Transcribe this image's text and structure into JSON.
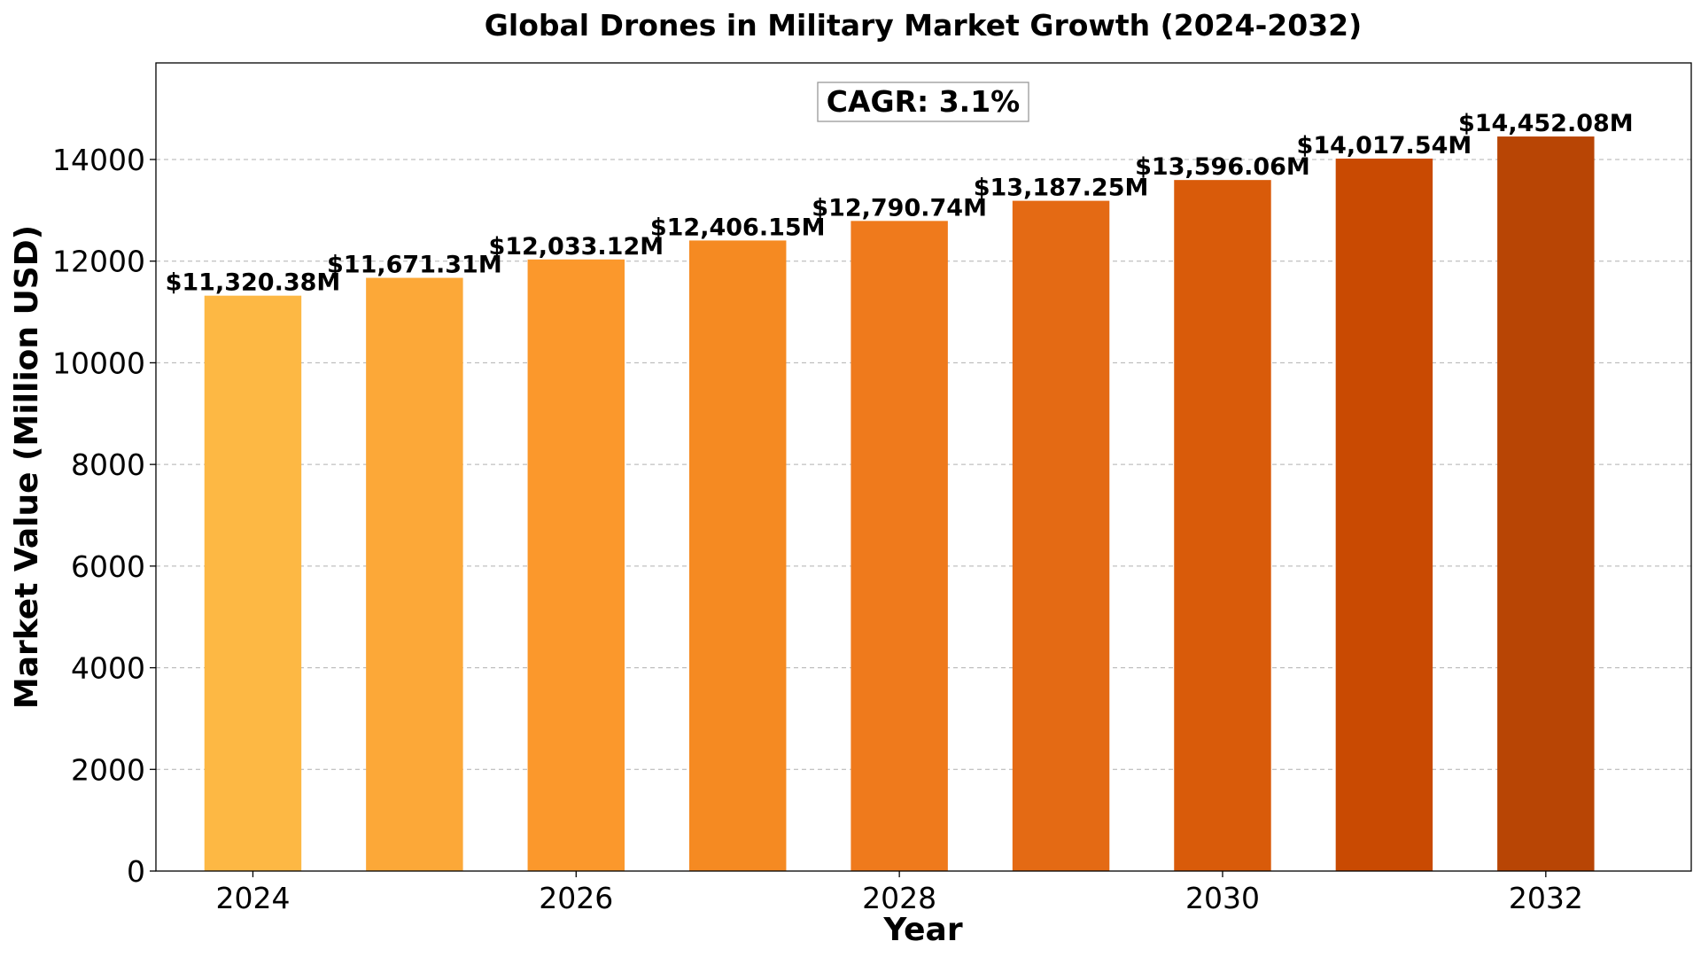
{
  "chart_data": {
    "type": "bar",
    "title": "Global Drones in Military Market Growth (2024-2032)",
    "xlabel": "Year",
    "ylabel": "Market Value (Million USD)",
    "categories": [
      2024,
      2025,
      2026,
      2027,
      2028,
      2029,
      2030,
      2031,
      2032
    ],
    "values": [
      11320.38,
      11671.31,
      12033.12,
      12406.15,
      12790.74,
      13187.25,
      13596.06,
      14017.54,
      14452.08
    ],
    "data_labels": [
      "$11,320.38M",
      "$11,671.31M",
      "$12,033.12M",
      "$12,406.15M",
      "$12,790.74M",
      "$13,187.25M",
      "$13,596.06M",
      "$14,017.54M",
      "$14,452.08M"
    ],
    "bar_colors": [
      "#fdb844",
      "#fca838",
      "#fb982c",
      "#f58a22",
      "#ef7a1c",
      "#e46a14",
      "#d95b0a",
      "#c94a02",
      "#b84505"
    ],
    "xticks": [
      2024,
      2026,
      2028,
      2030,
      2032
    ],
    "yticks": [
      0,
      2000,
      4000,
      6000,
      8000,
      10000,
      12000,
      14000
    ],
    "ylim": [
      0,
      15900
    ],
    "xlim": [
      2023.4,
      2032.9
    ],
    "grid": "y-dashed",
    "annotation": "CAGR: 3.1%"
  }
}
